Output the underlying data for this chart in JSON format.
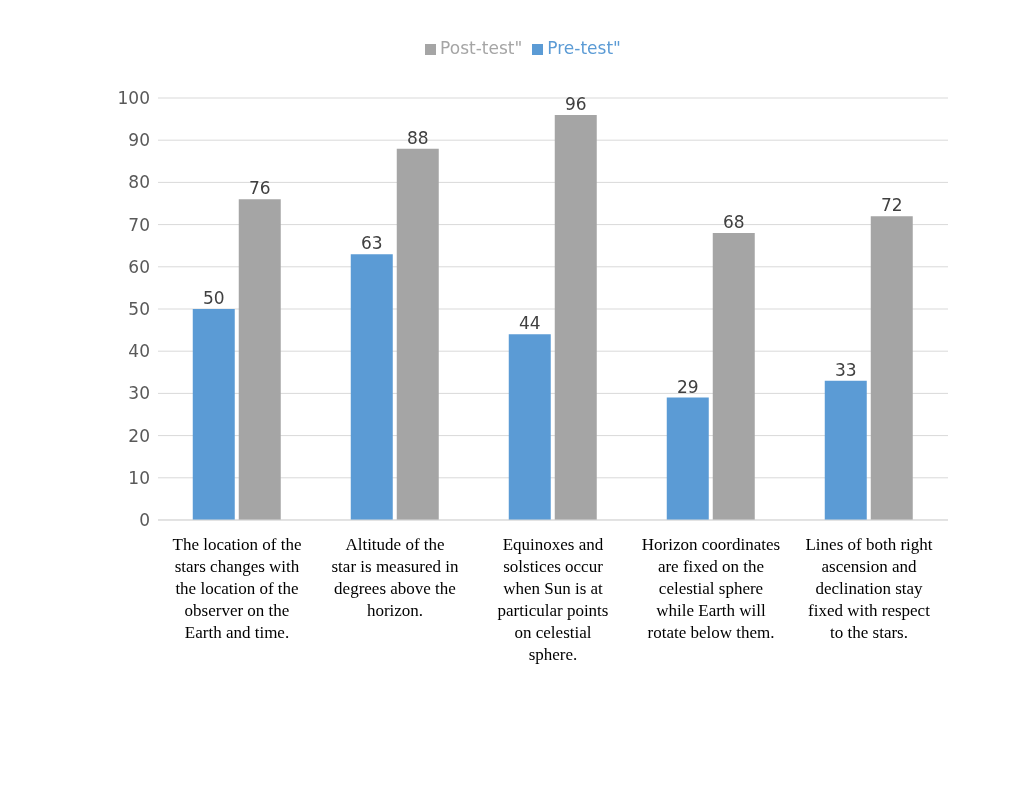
{
  "chart_data": {
    "type": "bar",
    "categories": [
      "The location of the stars changes with the location of the observer on the Earth and time.",
      "Altitude of the star is measured in degrees above the horizon.",
      "Equinoxes and solstices occur when Sun is at particular points on celestial sphere.",
      "Horizon coordinates are fixed on the celestial sphere while Earth will rotate below them.",
      "Lines of both right ascension and declination stay fixed with respect to the stars."
    ],
    "series": [
      {
        "name": "Pre-test\"",
        "color": "#5b9bd5",
        "values": [
          50,
          63,
          44,
          29,
          33
        ]
      },
      {
        "name": "Post-test\"",
        "color": "#a5a5a5",
        "values": [
          76,
          88,
          96,
          68,
          72
        ]
      }
    ],
    "ylim": [
      0,
      100
    ],
    "yticks": [
      0,
      10,
      20,
      30,
      40,
      50,
      60,
      70,
      80,
      90,
      100
    ],
    "grid": "y",
    "legend": "top",
    "data_labels": true
  }
}
